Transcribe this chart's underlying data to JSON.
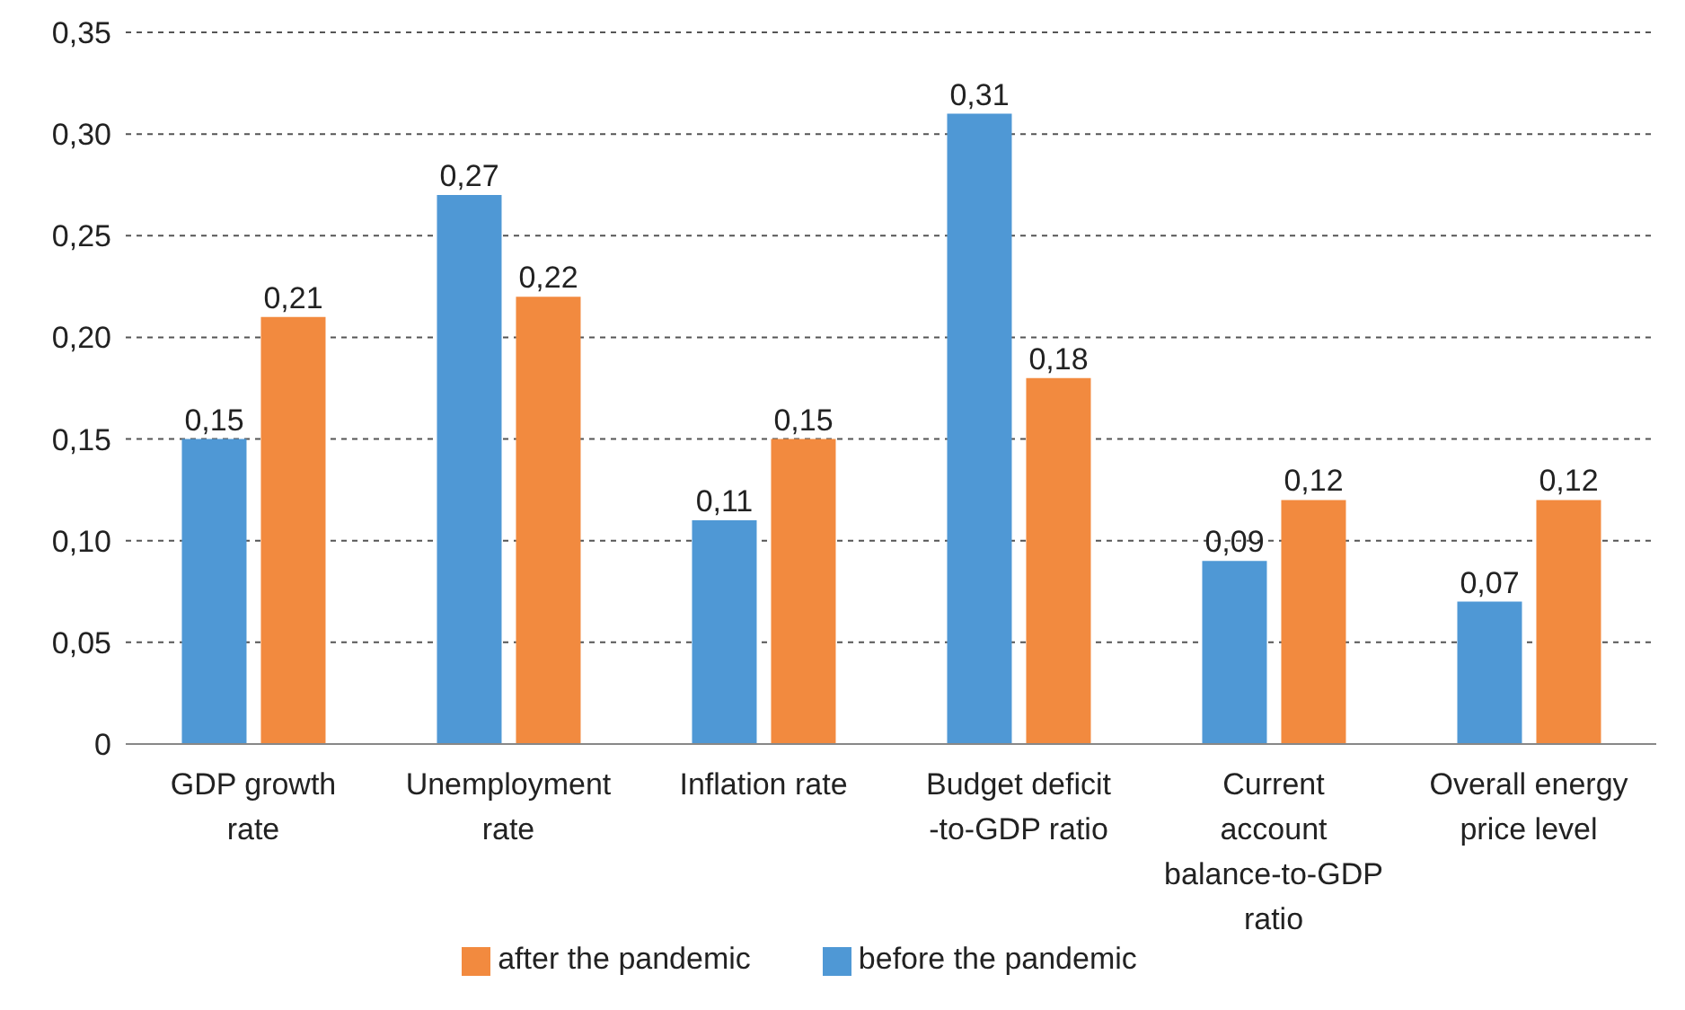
{
  "chart_data": {
    "type": "bar",
    "categories": [
      "GDP growth rate",
      "Unemployment rate",
      "Inflation rate",
      "Budget deficit -to-GDP ratio",
      "Current account balance-to-GDP ratio",
      "Overall energy price level"
    ],
    "series": [
      {
        "name": "before the pandemic",
        "color": "#4f98d5",
        "values": [
          0.15,
          0.27,
          0.11,
          0.31,
          0.09,
          0.07
        ],
        "value_labels": [
          "0,15",
          "0,27",
          "0,11",
          "0,31",
          "0,09",
          "0,07"
        ]
      },
      {
        "name": "after the pandemic",
        "color": "#f28a3f",
        "values": [
          0.21,
          0.22,
          0.15,
          0.18,
          0.12,
          0.12
        ],
        "value_labels": [
          "0,21",
          "0,22",
          "0,15",
          "0,18",
          "0,12",
          "0,12"
        ]
      }
    ],
    "ylim": [
      0,
      0.35
    ],
    "yticks": [
      0,
      {
        "value": 0.05,
        "label": "0,05"
      },
      {
        "value": 0.1,
        "label": "0,10"
      },
      {
        "value": 0.15,
        "label": "0,15"
      },
      {
        "value": 0.2,
        "label": "0,20"
      },
      {
        "value": 0.25,
        "label": "0,25"
      },
      {
        "value": 0.3,
        "label": "0,30"
      },
      {
        "value": 0.35,
        "label": "0,35"
      }
    ],
    "grid": "y",
    "legend": "bottom"
  }
}
